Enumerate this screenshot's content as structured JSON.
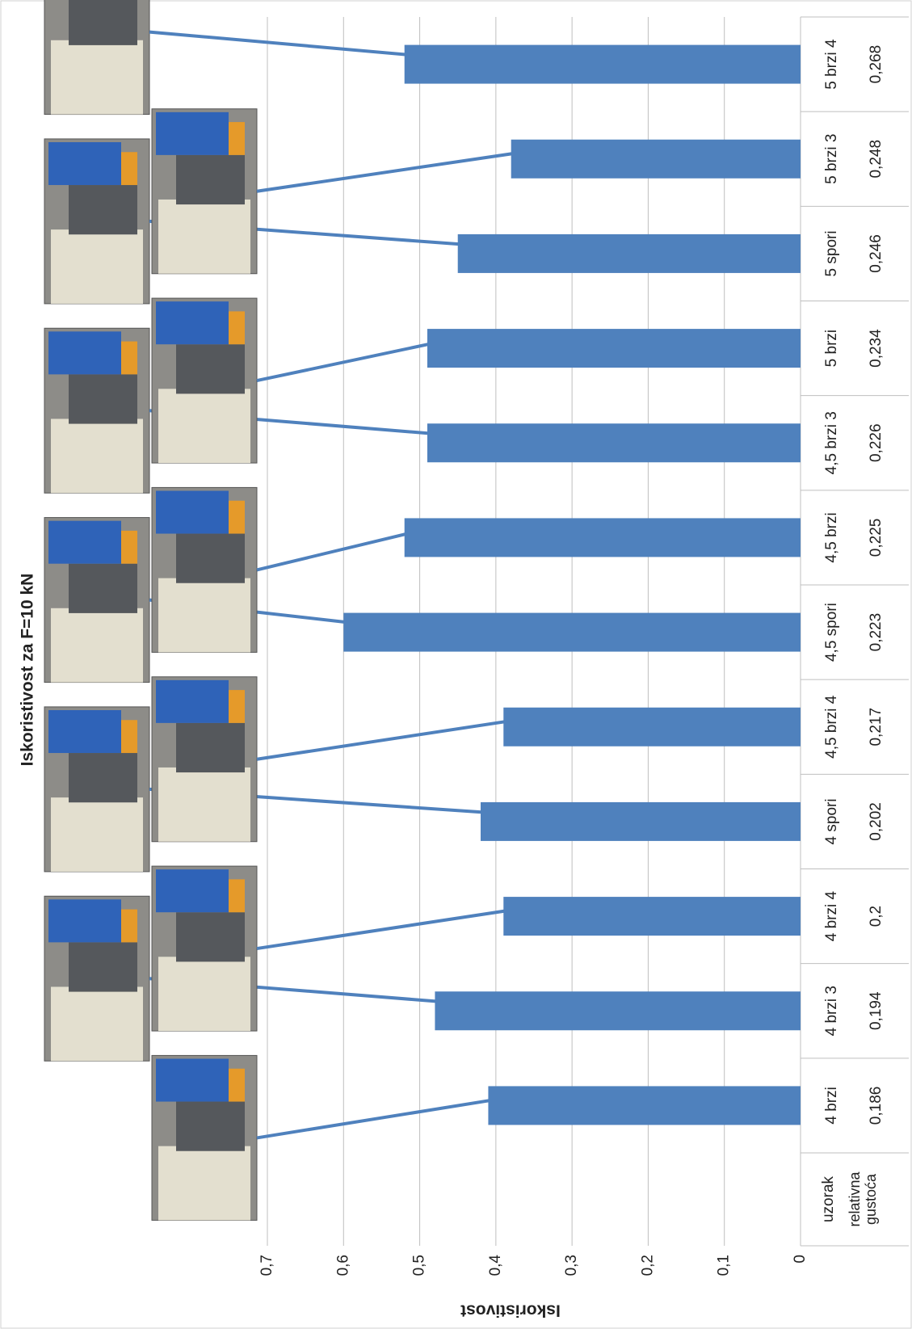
{
  "chart_data": {
    "type": "bar",
    "title": "Iskoristivost za F=10 kN",
    "y_label": "Iskoristivost",
    "categories": [
      "4 brzi",
      "4 brzi 3",
      "4 brzi 4",
      "4 spori",
      "4,5 brzi 4",
      "4,5 spori",
      "4,5 brzi",
      "4,5 brzi 3",
      "5 brzi",
      "5 spori",
      "5 brzi 3",
      "5 brzi 4"
    ],
    "values": [
      0.41,
      0.48,
      0.39,
      0.42,
      0.39,
      0.6,
      0.52,
      0.49,
      0.49,
      0.45,
      0.38,
      0.52
    ],
    "color": "#4f81bd",
    "ylim": [
      0,
      0.7
    ],
    "yticks": [
      0,
      {
        "value": 0.1,
        "label": "0,1"
      },
      {
        "value": 0.2,
        "label": "0,2"
      },
      {
        "value": 0.3,
        "label": "0,3"
      },
      {
        "value": 0.4,
        "label": "0,4"
      },
      {
        "value": 0.5,
        "label": "0,5"
      },
      {
        "value": 0.6,
        "label": "0,6"
      },
      {
        "value": 0.7,
        "label": "0,7"
      }
    ],
    "grid": true,
    "table": {
      "row_labels": [
        "uzorak",
        "relativna gustoća"
      ],
      "density": [
        "0,186",
        "0,194",
        "0,2",
        "0,202",
        "0,217",
        "0,223",
        "0,225",
        "0,226",
        "0,234",
        "0,246",
        "0,248",
        "0,268"
      ]
    }
  }
}
